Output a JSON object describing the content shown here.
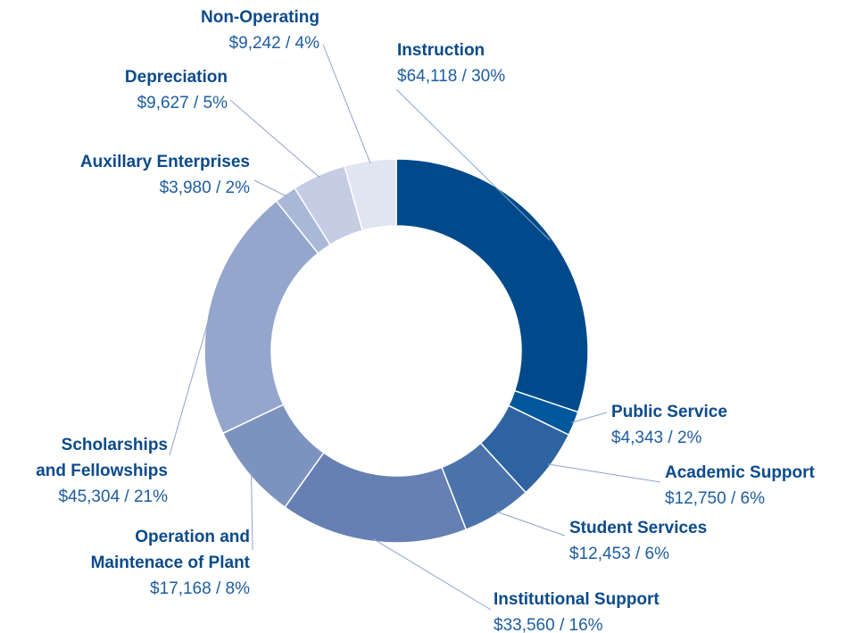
{
  "chart_data": {
    "type": "donut",
    "categories": [
      "Instruction",
      "Public Service",
      "Academic Support",
      "Student Services",
      "Institutional Support",
      "Operation and Maintenace of Plant",
      "Scholarships and Fellowships",
      "Auxillary Enterprises",
      "Depreciation",
      "Non-Operating"
    ],
    "values": [
      64118,
      4343,
      12750,
      12453,
      33560,
      17168,
      45304,
      3980,
      9627,
      9242
    ],
    "value_labels": [
      "$64,118 / 30%",
      "$4,343 / 2%",
      "$12,750 / 6%",
      "$12,453 / 6%",
      "$33,560 / 16%",
      "$17,168 / 8%",
      "$45,304 / 21%",
      "$3,980 / 2%",
      "$9,627 / 5%",
      "$9,242 / 4%"
    ],
    "colors": [
      "#004a8c",
      "#00579c",
      "#2e63a2",
      "#4a73ab",
      "#6680b3",
      "#7d93bf",
      "#94a6cc",
      "#aab8d7",
      "#c4cde4",
      "#e1e5f1"
    ]
  }
}
